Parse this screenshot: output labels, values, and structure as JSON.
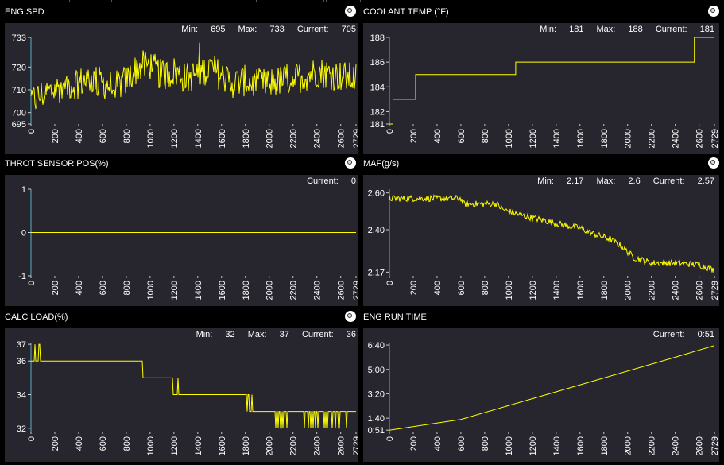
{
  "chart_data": [
    {
      "id": "eng-spd",
      "type": "line",
      "title": "ENG SPD",
      "stats": {
        "min": "695",
        "max": "733",
        "current": "705"
      },
      "labels": {
        "min": "Min:",
        "max": "Max:",
        "current": "Current:"
      },
      "y_ticks": [
        695,
        700,
        710,
        720,
        733
      ],
      "x_ticks": [
        0,
        200,
        400,
        600,
        800,
        1000,
        1200,
        1400,
        1600,
        1800,
        2000,
        2200,
        2400,
        2600,
        2729
      ],
      "xlim": [
        0,
        2729
      ],
      "ylim": [
        695,
        733
      ],
      "series": [
        {
          "values": [
            [
              0,
              705
            ],
            [
              100,
              708
            ],
            [
              200,
              710
            ],
            [
              300,
              712
            ],
            [
              400,
              713
            ],
            [
              500,
              715
            ],
            [
              600,
              713
            ],
            [
              700,
              711
            ],
            [
              800,
              714
            ],
            [
              900,
              720
            ],
            [
              1000,
              721
            ],
            [
              1100,
              716
            ],
            [
              1200,
              718
            ],
            [
              1300,
              715
            ],
            [
              1400,
              717
            ],
            [
              1500,
              720
            ],
            [
              1600,
              716
            ],
            [
              1700,
              713
            ],
            [
              1800,
              714
            ],
            [
              1900,
              712
            ],
            [
              2000,
              713
            ],
            [
              2100,
              714
            ],
            [
              2200,
              715
            ],
            [
              2300,
              716
            ],
            [
              2400,
              718
            ],
            [
              2500,
              717
            ],
            [
              2600,
              716
            ],
            [
              2700,
              715
            ],
            [
              2729,
              715
            ]
          ],
          "style": "noisy"
        }
      ]
    },
    {
      "id": "coolant-temp",
      "type": "line",
      "title": "COOLANT TEMP (°F)",
      "stats": {
        "min": "181",
        "max": "188",
        "current": "181"
      },
      "labels": {
        "min": "Min:",
        "max": "Max:",
        "current": "Current:"
      },
      "y_ticks": [
        181,
        182,
        184,
        186,
        188
      ],
      "x_ticks": [
        0,
        200,
        400,
        600,
        800,
        1000,
        1200,
        1400,
        1600,
        1800,
        2000,
        2200,
        2400,
        2600,
        2729
      ],
      "xlim": [
        0,
        2729
      ],
      "ylim": [
        181,
        188
      ],
      "series": [
        {
          "values": [
            [
              0,
              181
            ],
            [
              30,
              181
            ],
            [
              30,
              183
            ],
            [
              220,
              183
            ],
            [
              220,
              185
            ],
            [
              1060,
              185
            ],
            [
              1060,
              186
            ],
            [
              2560,
              186
            ],
            [
              2560,
              188
            ],
            [
              2729,
              188
            ]
          ],
          "style": "step"
        }
      ]
    },
    {
      "id": "throt-sensor-pos",
      "type": "line",
      "title": "THROT SENSOR POS(%)",
      "stats": {
        "current": "0"
      },
      "labels": {
        "current": "Current:"
      },
      "y_ticks": [
        -1,
        0,
        1
      ],
      "x_ticks": [
        0,
        200,
        400,
        600,
        800,
        1000,
        1200,
        1400,
        1600,
        1800,
        2000,
        2200,
        2400,
        2600,
        2729
      ],
      "xlim": [
        0,
        2729
      ],
      "ylim": [
        -1,
        1
      ],
      "series": [
        {
          "values": [
            [
              0,
              0
            ],
            [
              2729,
              0
            ]
          ],
          "style": "line"
        }
      ]
    },
    {
      "id": "maf",
      "type": "line",
      "title": "MAF(g/s)",
      "stats": {
        "min": "2.17",
        "max": "2.6",
        "current": "2.57"
      },
      "labels": {
        "min": "Min:",
        "max": "Max:",
        "current": "Current:"
      },
      "y_ticks": [
        2.17,
        2.4,
        2.6
      ],
      "y_tick_labels": [
        "2.17",
        "2.40",
        "2.60"
      ],
      "x_ticks": [
        0,
        200,
        400,
        600,
        800,
        1000,
        1200,
        1400,
        1600,
        1800,
        2000,
        2200,
        2400,
        2600,
        2729
      ],
      "xlim": [
        0,
        2729
      ],
      "ylim": [
        2.15,
        2.62
      ],
      "series": [
        {
          "values": [
            [
              0,
              2.57
            ],
            [
              300,
              2.57
            ],
            [
              600,
              2.57
            ],
            [
              620,
              2.54
            ],
            [
              900,
              2.54
            ],
            [
              950,
              2.51
            ],
            [
              1100,
              2.48
            ],
            [
              1300,
              2.45
            ],
            [
              1500,
              2.42
            ],
            [
              1600,
              2.41
            ],
            [
              1700,
              2.38
            ],
            [
              1850,
              2.35
            ],
            [
              1950,
              2.31
            ],
            [
              2050,
              2.25
            ],
            [
              2200,
              2.22
            ],
            [
              2400,
              2.22
            ],
            [
              2600,
              2.21
            ],
            [
              2729,
              2.18
            ]
          ],
          "style": "noisy-small"
        }
      ]
    },
    {
      "id": "calc-load",
      "type": "line",
      "title": "CALC LOAD(%)",
      "stats": {
        "min": "32",
        "max": "37",
        "current": "36"
      },
      "labels": {
        "min": "Min:",
        "max": "Max:",
        "current": "Current:"
      },
      "y_ticks": [
        32,
        34,
        36,
        37
      ],
      "x_ticks": [
        0,
        200,
        400,
        600,
        800,
        1000,
        1200,
        1400,
        1600,
        1800,
        2000,
        2200,
        2400,
        2600,
        2729
      ],
      "xlim": [
        0,
        2729
      ],
      "ylim": [
        31.8,
        37.1
      ],
      "series": [
        {
          "values": [
            [
              0,
              36
            ],
            [
              940,
              36
            ],
            [
              940,
              35
            ],
            [
              1190,
              35
            ],
            [
              1190,
              34
            ],
            [
              1810,
              34
            ],
            [
              1810,
              33
            ],
            [
              2729,
              33
            ]
          ],
          "style": "step-flicker"
        }
      ]
    },
    {
      "id": "eng-run-time",
      "type": "line",
      "title": "ENG RUN TIME",
      "stats": {
        "current": "0:51"
      },
      "labels": {
        "current": "Current:"
      },
      "y_ticks": [
        51,
        100,
        200,
        300,
        400
      ],
      "y_tick_labels": [
        "0:51",
        "1:40",
        "3:20",
        "5:00",
        "6:40"
      ],
      "x_ticks": [
        0,
        200,
        400,
        600,
        800,
        1000,
        1200,
        1400,
        1600,
        1800,
        2000,
        2200,
        2400,
        2600,
        2729
      ],
      "xlim": [
        0,
        2729
      ],
      "ylim": [
        45,
        410
      ],
      "series": [
        {
          "values": [
            [
              0,
              51
            ],
            [
              600,
              95
            ],
            [
              1200,
              180
            ],
            [
              1800,
              265
            ],
            [
              2400,
              350
            ],
            [
              2729,
              398
            ]
          ],
          "style": "line"
        }
      ]
    }
  ]
}
